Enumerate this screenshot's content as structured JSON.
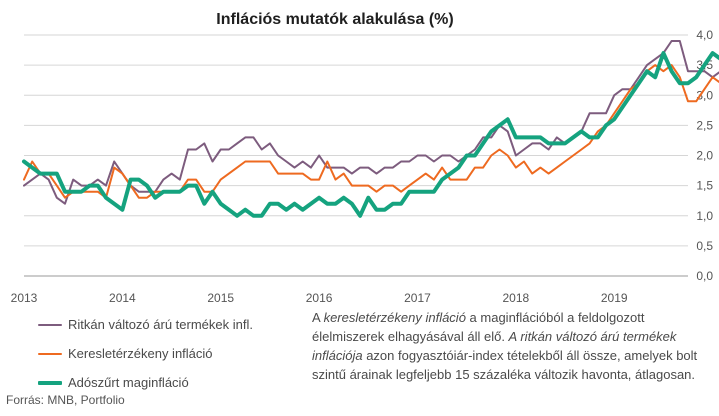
{
  "chart_data": {
    "type": "line",
    "title": "Inflációs mutatók alakulása (%)",
    "ylim": [
      0,
      4
    ],
    "y_ticks": [
      "0,0",
      "0,5",
      "1,0",
      "1,5",
      "2,0",
      "2,5",
      "3,0",
      "3,5",
      "4,0"
    ],
    "x_ticks": [
      "2013",
      "2014",
      "2015",
      "2016",
      "2017",
      "2018",
      "2019"
    ],
    "x_start": "2013-01",
    "x_end": "2019-10",
    "grid": "horizontal",
    "legend_position": "bottom-left",
    "series": [
      {
        "name": "Ritkán változó árú termékek infl.",
        "color": "#7d5c7e",
        "values": [
          1.5,
          1.6,
          1.7,
          1.6,
          1.3,
          1.2,
          1.6,
          1.5,
          1.5,
          1.6,
          1.5,
          1.9,
          1.7,
          1.5,
          1.4,
          1.4,
          1.4,
          1.6,
          1.7,
          1.6,
          2.1,
          2.1,
          2.2,
          1.9,
          2.1,
          2.1,
          2.2,
          2.3,
          2.3,
          2.1,
          2.2,
          2.0,
          1.9,
          1.8,
          1.9,
          1.8,
          2.0,
          1.8,
          1.8,
          1.8,
          1.7,
          1.8,
          1.8,
          1.7,
          1.8,
          1.8,
          1.9,
          1.9,
          2.0,
          2.0,
          1.9,
          2.0,
          2.0,
          1.9,
          2.0,
          2.1,
          2.3,
          2.3,
          2.5,
          2.4,
          2.0,
          2.1,
          2.2,
          2.2,
          2.1,
          2.3,
          2.2,
          2.3,
          2.4,
          2.7,
          2.7,
          2.7,
          3.0,
          3.1,
          3.1,
          3.3,
          3.5,
          3.6,
          3.7,
          3.9,
          3.9,
          3.4,
          3.4,
          3.4,
          3.3,
          3.4
        ]
      },
      {
        "name": "Keresletérzékeny infláció",
        "color": "#ee6a20",
        "values": [
          1.6,
          1.9,
          1.7,
          1.7,
          1.5,
          1.3,
          1.4,
          1.4,
          1.4,
          1.4,
          1.3,
          1.8,
          1.7,
          1.5,
          1.3,
          1.3,
          1.4,
          1.4,
          1.4,
          1.4,
          1.6,
          1.6,
          1.4,
          1.4,
          1.6,
          1.7,
          1.8,
          1.9,
          1.9,
          1.9,
          1.9,
          1.7,
          1.7,
          1.7,
          1.7,
          1.6,
          1.6,
          1.9,
          1.6,
          1.7,
          1.5,
          1.5,
          1.5,
          1.4,
          1.5,
          1.5,
          1.4,
          1.5,
          1.6,
          1.7,
          1.6,
          1.8,
          1.6,
          1.6,
          1.6,
          1.8,
          1.8,
          2.0,
          2.1,
          2.0,
          1.8,
          1.9,
          1.7,
          1.8,
          1.7,
          1.8,
          1.9,
          2.0,
          2.1,
          2.2,
          2.4,
          2.5,
          2.7,
          2.9,
          3.1,
          3.2,
          3.4,
          3.5,
          3.4,
          3.5,
          3.3,
          2.9,
          2.9,
          3.1,
          3.3,
          3.2
        ]
      },
      {
        "name": "Adószűrt maginfláció",
        "color": "#15a37f",
        "values": [
          1.9,
          1.8,
          1.7,
          1.7,
          1.7,
          1.4,
          1.4,
          1.4,
          1.5,
          1.5,
          1.3,
          1.2,
          1.1,
          1.6,
          1.6,
          1.5,
          1.3,
          1.4,
          1.4,
          1.4,
          1.5,
          1.5,
          1.2,
          1.4,
          1.2,
          1.1,
          1.0,
          1.1,
          1.0,
          1.0,
          1.2,
          1.2,
          1.1,
          1.2,
          1.1,
          1.2,
          1.3,
          1.2,
          1.2,
          1.3,
          1.2,
          1.0,
          1.3,
          1.1,
          1.1,
          1.2,
          1.2,
          1.4,
          1.4,
          1.4,
          1.4,
          1.6,
          1.7,
          1.8,
          2.0,
          2.0,
          2.2,
          2.4,
          2.5,
          2.6,
          2.3,
          2.3,
          2.3,
          2.3,
          2.2,
          2.2,
          2.2,
          2.3,
          2.4,
          2.3,
          2.3,
          2.5,
          2.6,
          2.8,
          3.0,
          3.2,
          3.4,
          3.3,
          3.7,
          3.4,
          3.2,
          3.2,
          3.3,
          3.5,
          3.7,
          3.6
        ]
      }
    ]
  },
  "note": {
    "p1": "A ",
    "p1_italic": "keresletérzékeny infláció",
    "p2": " a maginflációból a feldolgozott élelmiszerek elhagyásával áll elő. ",
    "p2_italic": "A ritkán változó árú termékek inflációja",
    "p3": " azon fogyasztóiár-index tételekből áll össze, amelyek bolt szintű árainak legfeljebb 15 százaléka változik havonta, átlagosan."
  },
  "source": "Forrás: MNB, Portfolio"
}
